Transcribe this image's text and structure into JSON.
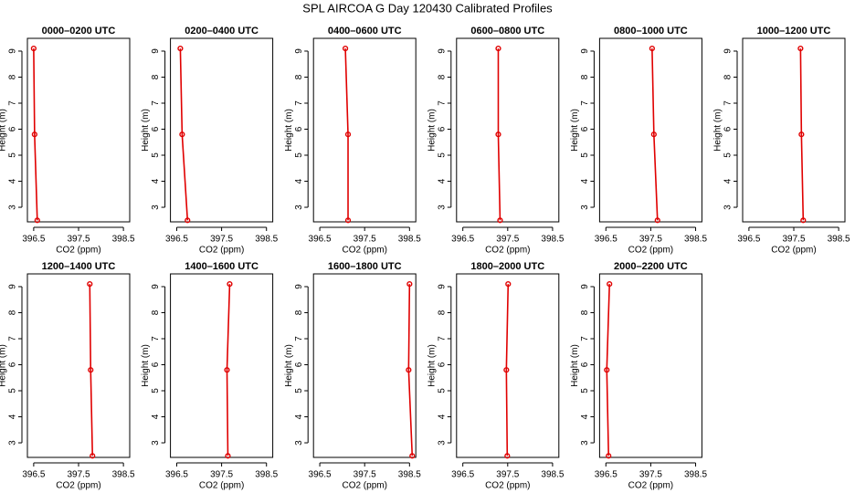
{
  "title": "SPL AIRCOA G  Day 120430  Calibrated Profiles",
  "chart_data": [
    {
      "type": "line",
      "title": "0000–0200 UTC",
      "xlabel": "CO2 (ppm)",
      "ylabel": "Height (m)",
      "color": "#e00000",
      "x": [
        396.5,
        396.52,
        396.58
      ],
      "values": [
        9.1,
        5.8,
        2.5
      ],
      "xlim": [
        396.36,
        398.64
      ],
      "ylim": [
        2.44,
        9.49
      ],
      "xticks": [
        396.5,
        397.5,
        398.5
      ],
      "yticks": [
        3,
        4,
        5,
        6,
        7,
        8,
        9
      ]
    },
    {
      "type": "line",
      "title": "0200–0400 UTC",
      "xlabel": "CO2 (ppm)",
      "ylabel": "Height (m)",
      "color": "#e00000",
      "x": [
        396.58,
        396.62,
        396.74
      ],
      "values": [
        9.1,
        5.8,
        2.5
      ],
      "xlim": [
        396.36,
        398.64
      ],
      "ylim": [
        2.44,
        9.49
      ],
      "xticks": [
        396.5,
        397.5,
        398.5
      ],
      "yticks": [
        3,
        4,
        5,
        6,
        7,
        8,
        9
      ]
    },
    {
      "type": "line",
      "title": "0400–0600 UTC",
      "xlabel": "CO2 (ppm)",
      "ylabel": "Height (m)",
      "color": "#e00000",
      "x": [
        397.07,
        397.13,
        397.13
      ],
      "values": [
        9.1,
        5.8,
        2.5
      ],
      "xlim": [
        396.36,
        398.64
      ],
      "ylim": [
        2.44,
        9.49
      ],
      "xticks": [
        396.5,
        397.5,
        398.5
      ],
      "yticks": [
        3,
        4,
        5,
        6,
        7,
        8,
        9
      ]
    },
    {
      "type": "line",
      "title": "0600–0800 UTC",
      "xlabel": "CO2 (ppm)",
      "ylabel": "Height (m)",
      "color": "#e00000",
      "x": [
        397.29,
        397.29,
        397.33
      ],
      "values": [
        9.1,
        5.8,
        2.5
      ],
      "xlim": [
        396.36,
        398.64
      ],
      "ylim": [
        2.44,
        9.49
      ],
      "xticks": [
        396.5,
        397.5,
        398.5
      ],
      "yticks": [
        3,
        4,
        5,
        6,
        7,
        8,
        9
      ]
    },
    {
      "type": "line",
      "title": "0800–1000 UTC",
      "xlabel": "CO2 (ppm)",
      "ylabel": "Height (m)",
      "color": "#e00000",
      "x": [
        397.53,
        397.57,
        397.65
      ],
      "values": [
        9.1,
        5.8,
        2.5
      ],
      "xlim": [
        396.36,
        398.64
      ],
      "ylim": [
        2.44,
        9.49
      ],
      "xticks": [
        396.5,
        397.5,
        398.5
      ],
      "yticks": [
        3,
        4,
        5,
        6,
        7,
        8,
        9
      ]
    },
    {
      "type": "line",
      "title": "1000–1200 UTC",
      "xlabel": "CO2 (ppm)",
      "ylabel": "Height (m)",
      "color": "#e00000",
      "x": [
        397.65,
        397.67,
        397.71
      ],
      "values": [
        9.1,
        5.8,
        2.5
      ],
      "xlim": [
        396.36,
        398.64
      ],
      "ylim": [
        2.44,
        9.49
      ],
      "xticks": [
        396.5,
        397.5,
        398.5
      ],
      "yticks": [
        3,
        4,
        5,
        6,
        7,
        8,
        9
      ]
    },
    {
      "type": "line",
      "title": "1200–1400 UTC",
      "xlabel": "CO2 (ppm)",
      "ylabel": "Height (m)",
      "color": "#e00000",
      "x": [
        397.75,
        397.77,
        397.81
      ],
      "values": [
        9.1,
        5.8,
        2.5
      ],
      "xlim": [
        396.36,
        398.64
      ],
      "ylim": [
        2.44,
        9.49
      ],
      "xticks": [
        396.5,
        397.5,
        398.5
      ],
      "yticks": [
        3,
        4,
        5,
        6,
        7,
        8,
        9
      ]
    },
    {
      "type": "line",
      "title": "1400–1600 UTC",
      "xlabel": "CO2 (ppm)",
      "ylabel": "Height (m)",
      "color": "#e00000",
      "x": [
        397.68,
        397.62,
        397.64
      ],
      "values": [
        9.1,
        5.8,
        2.5
      ],
      "xlim": [
        396.36,
        398.64
      ],
      "ylim": [
        2.44,
        9.49
      ],
      "xticks": [
        396.5,
        397.5,
        398.5
      ],
      "yticks": [
        3,
        4,
        5,
        6,
        7,
        8,
        9
      ]
    },
    {
      "type": "line",
      "title": "1600–1800 UTC",
      "xlabel": "CO2 (ppm)",
      "ylabel": "Height (m)",
      "color": "#e00000",
      "x": [
        398.5,
        398.48,
        398.56
      ],
      "values": [
        9.1,
        5.8,
        2.5
      ],
      "xlim": [
        396.36,
        398.64
      ],
      "ylim": [
        2.44,
        9.49
      ],
      "xticks": [
        396.5,
        397.5,
        398.5
      ],
      "yticks": [
        3,
        4,
        5,
        6,
        7,
        8,
        9
      ]
    },
    {
      "type": "line",
      "title": "1800–2000 UTC",
      "xlabel": "CO2 (ppm)",
      "ylabel": "Height (m)",
      "color": "#e00000",
      "x": [
        397.51,
        397.47,
        397.49
      ],
      "values": [
        9.1,
        5.8,
        2.5
      ],
      "xlim": [
        396.36,
        398.64
      ],
      "ylim": [
        2.44,
        9.49
      ],
      "xticks": [
        396.5,
        397.5,
        398.5
      ],
      "yticks": [
        3,
        4,
        5,
        6,
        7,
        8,
        9
      ]
    },
    {
      "type": "line",
      "title": "2000–2200 UTC",
      "xlabel": "CO2 (ppm)",
      "ylabel": "Height (m)",
      "color": "#e00000",
      "x": [
        396.58,
        396.52,
        396.56
      ],
      "values": [
        9.1,
        5.8,
        2.5
      ],
      "xlim": [
        396.36,
        398.64
      ],
      "ylim": [
        2.44,
        9.49
      ],
      "xticks": [
        396.5,
        397.5,
        398.5
      ],
      "yticks": [
        3,
        4,
        5,
        6,
        7,
        8,
        9
      ]
    }
  ]
}
